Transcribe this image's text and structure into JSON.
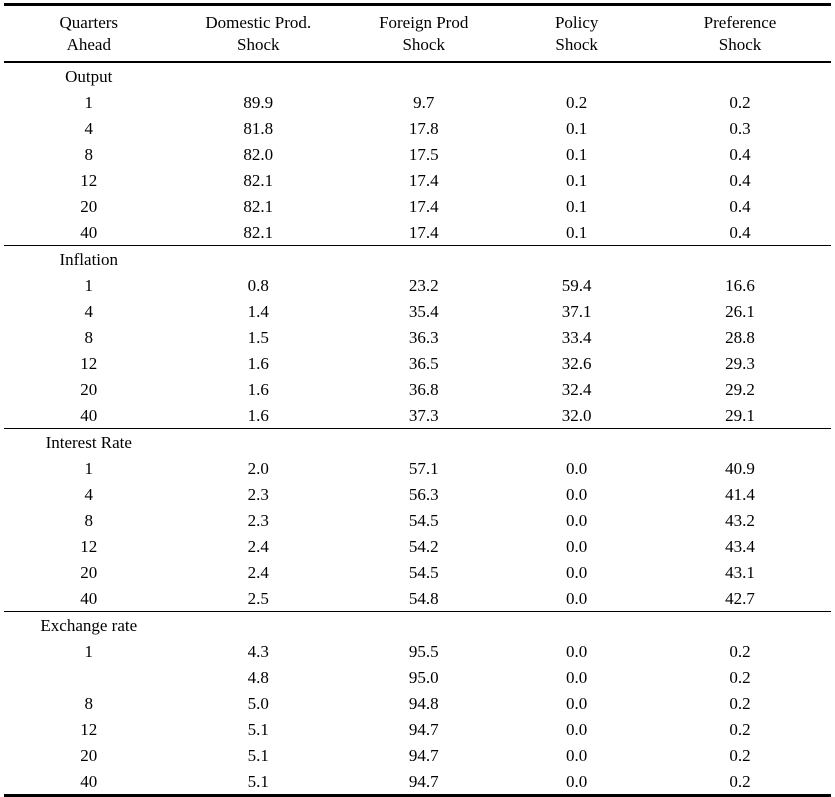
{
  "page": {
    "background_color": "#ffffff",
    "text_color": "#000000",
    "rule_color": "#000000"
  },
  "table": {
    "headers": [
      {
        "line1": "Quarters",
        "line2": "Ahead"
      },
      {
        "line1": "Domestic Prod.",
        "line2": "Shock"
      },
      {
        "line1": "Foreign Prod",
        "line2": "Shock"
      },
      {
        "line1": "Policy",
        "line2": "Shock"
      },
      {
        "line1": "Preference",
        "line2": "Shock"
      }
    ],
    "sections": [
      {
        "label": "Output",
        "rows": [
          {
            "quarter": "1",
            "values": [
              "89.9",
              "9.7",
              "0.2",
              "0.2"
            ]
          },
          {
            "quarter": "4",
            "values": [
              "81.8",
              "17.8",
              "0.1",
              "0.3"
            ]
          },
          {
            "quarter": "8",
            "values": [
              "82.0",
              "17.5",
              "0.1",
              "0.4"
            ]
          },
          {
            "quarter": "12",
            "values": [
              "82.1",
              "17.4",
              "0.1",
              "0.4"
            ]
          },
          {
            "quarter": "20",
            "values": [
              "82.1",
              "17.4",
              "0.1",
              "0.4"
            ]
          },
          {
            "quarter": "40",
            "values": [
              "82.1",
              "17.4",
              "0.1",
              "0.4"
            ]
          }
        ]
      },
      {
        "label": "Inflation",
        "rows": [
          {
            "quarter": "1",
            "values": [
              "0.8",
              "23.2",
              "59.4",
              "16.6"
            ]
          },
          {
            "quarter": "4",
            "values": [
              "1.4",
              "35.4",
              "37.1",
              "26.1"
            ]
          },
          {
            "quarter": "8",
            "values": [
              "1.5",
              "36.3",
              "33.4",
              "28.8"
            ]
          },
          {
            "quarter": "12",
            "values": [
              "1.6",
              "36.5",
              "32.6",
              "29.3"
            ]
          },
          {
            "quarter": "20",
            "values": [
              "1.6",
              "36.8",
              "32.4",
              "29.2"
            ]
          },
          {
            "quarter": "40",
            "values": [
              "1.6",
              "37.3",
              "32.0",
              "29.1"
            ]
          }
        ]
      },
      {
        "label": "Interest Rate",
        "rows": [
          {
            "quarter": "1",
            "values": [
              "2.0",
              "57.1",
              "0.0",
              "40.9"
            ]
          },
          {
            "quarter": "4",
            "values": [
              "2.3",
              "56.3",
              "0.0",
              "41.4"
            ]
          },
          {
            "quarter": "8",
            "values": [
              "2.3",
              "54.5",
              "0.0",
              "43.2"
            ]
          },
          {
            "quarter": "12",
            "values": [
              "2.4",
              "54.2",
              "0.0",
              "43.4"
            ]
          },
          {
            "quarter": "20",
            "values": [
              "2.4",
              "54.5",
              "0.0",
              "43.1"
            ]
          },
          {
            "quarter": "40",
            "values": [
              "2.5",
              "54.8",
              "0.0",
              "42.7"
            ]
          }
        ]
      },
      {
        "label": "Exchange rate",
        "rows": [
          {
            "quarter": "1",
            "values": [
              "4.3",
              "95.5",
              "0.0",
              "0.2"
            ]
          },
          {
            "quarter": "",
            "values": [
              "4.8",
              "95.0",
              "0.0",
              "0.2"
            ]
          },
          {
            "quarter": "8",
            "values": [
              "5.0",
              "94.8",
              "0.0",
              "0.2"
            ]
          },
          {
            "quarter": "12",
            "values": [
              "5.1",
              "94.7",
              "0.0",
              "0.2"
            ]
          },
          {
            "quarter": "20",
            "values": [
              "5.1",
              "94.7",
              "0.0",
              "0.2"
            ]
          },
          {
            "quarter": "40",
            "values": [
              "5.1",
              "94.7",
              "0.0",
              "0.2"
            ]
          }
        ]
      }
    ]
  }
}
